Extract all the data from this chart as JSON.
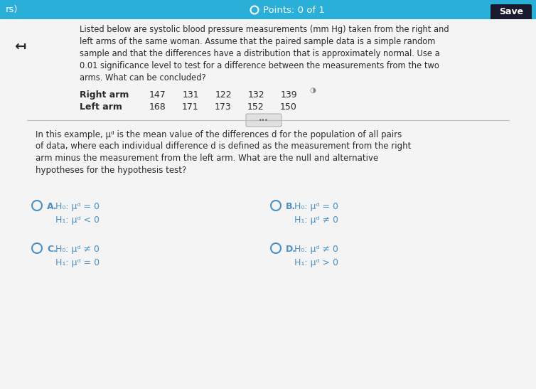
{
  "bg_top": "#2ab0d8",
  "bg_main": "#e8e8e8",
  "bg_white": "#f4f4f4",
  "title_text": "Points: 0 of 1",
  "save_btn": "Save",
  "rs_text": "rs)",
  "arrow_symbol": "↤",
  "problem_text": "Listed below are systolic blood pressure measurements (mm Hg) taken from the right and\nleft arms of the same woman. Assume that the paired sample data is a simple random\nsample and that the differences have a distribution that is approximately normal. Use a\n0.01 significance level to test for a difference between the measurements from the two\narms. What can be concluded?",
  "right_arm_label": "Right arm",
  "left_arm_label": "Left arm",
  "right_arm_values": [
    "147",
    "131",
    "122",
    "132",
    "139"
  ],
  "left_arm_values": [
    "168",
    "171",
    "173",
    "152",
    "150"
  ],
  "mid_text": "In this example, μᵈ is the mean value of the differences d for the population of all pairs\nof data, where each individual difference d is defined as the measurement from the right\narm minus the measurement from the left arm. What are the null and alternative\nhypotheses for the hypothesis test?",
  "opt_color": "#4a90c4",
  "text_color": "#2a2a2a",
  "label_color": "#3a3a3a",
  "header_text_color": "#ffffff",
  "circle_color": "#4a90c4",
  "divider_color": "#bbbbbb",
  "save_bg": "#1a1a2e"
}
